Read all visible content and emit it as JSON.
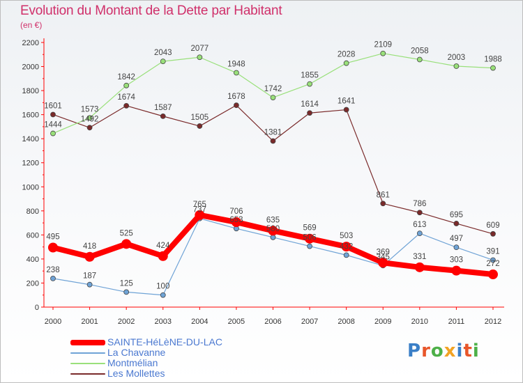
{
  "header": {
    "title": "Evolution du Montant de la Dette par Habitant",
    "subtitle": "(en €)"
  },
  "logo": {
    "text": "Proxiti",
    "letter_colors": [
      "#3a7fc7",
      "#e8562a",
      "#4db048",
      "#f2a324",
      "#3a7fc7",
      "#e8562a",
      "#4db048"
    ]
  },
  "chart_data": {
    "type": "line",
    "x": [
      "2000",
      "2001",
      "2002",
      "2003",
      "2004",
      "2005",
      "2006",
      "2007",
      "2008",
      "2009",
      "2010",
      "2011",
      "2012"
    ],
    "ylim": [
      0,
      2200
    ],
    "yticks": [
      "0",
      "200",
      "400",
      "600",
      "800",
      "1000",
      "1200",
      "1400",
      "1600",
      "1800",
      "2000",
      "2200"
    ],
    "grid": "none",
    "legend_position": "bottom-left",
    "series": [
      {
        "name": "SAINTE-HéLèNE-DU-LAC",
        "color": "#ff0000",
        "values": [
          495,
          418,
          525,
          424,
          765,
          706,
          635,
          569,
          503,
          369,
          331,
          303,
          272
        ],
        "labels": [
          "495",
          "418",
          "525",
          "424",
          "765",
          "706",
          "635",
          "569",
          "503",
          "369",
          "331",
          "303",
          "272"
        ]
      },
      {
        "name": "La Chavanne",
        "color": "#6fa3d6",
        "values": [
          238,
          187,
          125,
          100,
          737,
          653,
          580,
          506,
          432,
          345,
          613,
          497,
          391
        ],
        "labels": [
          "238",
          "187",
          "125",
          "100",
          "737",
          "653",
          "580",
          "506",
          "432",
          "345",
          "613",
          "497",
          "391"
        ]
      },
      {
        "name": "Montmélian",
        "color": "#99e07a",
        "values": [
          1444,
          1573,
          1842,
          2043,
          2077,
          1948,
          1742,
          1855,
          2028,
          2109,
          2058,
          2003,
          1988
        ],
        "labels": [
          "1444",
          "1573",
          "1842",
          "2043",
          "2077",
          "1948",
          "1742",
          "1855",
          "2028",
          "2109",
          "2058",
          "2003",
          "1988"
        ]
      },
      {
        "name": "Les Mollettes",
        "color": "#7a2a2a",
        "values": [
          1601,
          1492,
          1674,
          1587,
          1505,
          1678,
          1381,
          1614,
          1641,
          861,
          786,
          695,
          609
        ],
        "labels": [
          "1601",
          "1492",
          "1674",
          "1587",
          "1505",
          "1678",
          "1381",
          "1614",
          "1641",
          "861",
          "786",
          "695",
          "609"
        ]
      }
    ]
  }
}
